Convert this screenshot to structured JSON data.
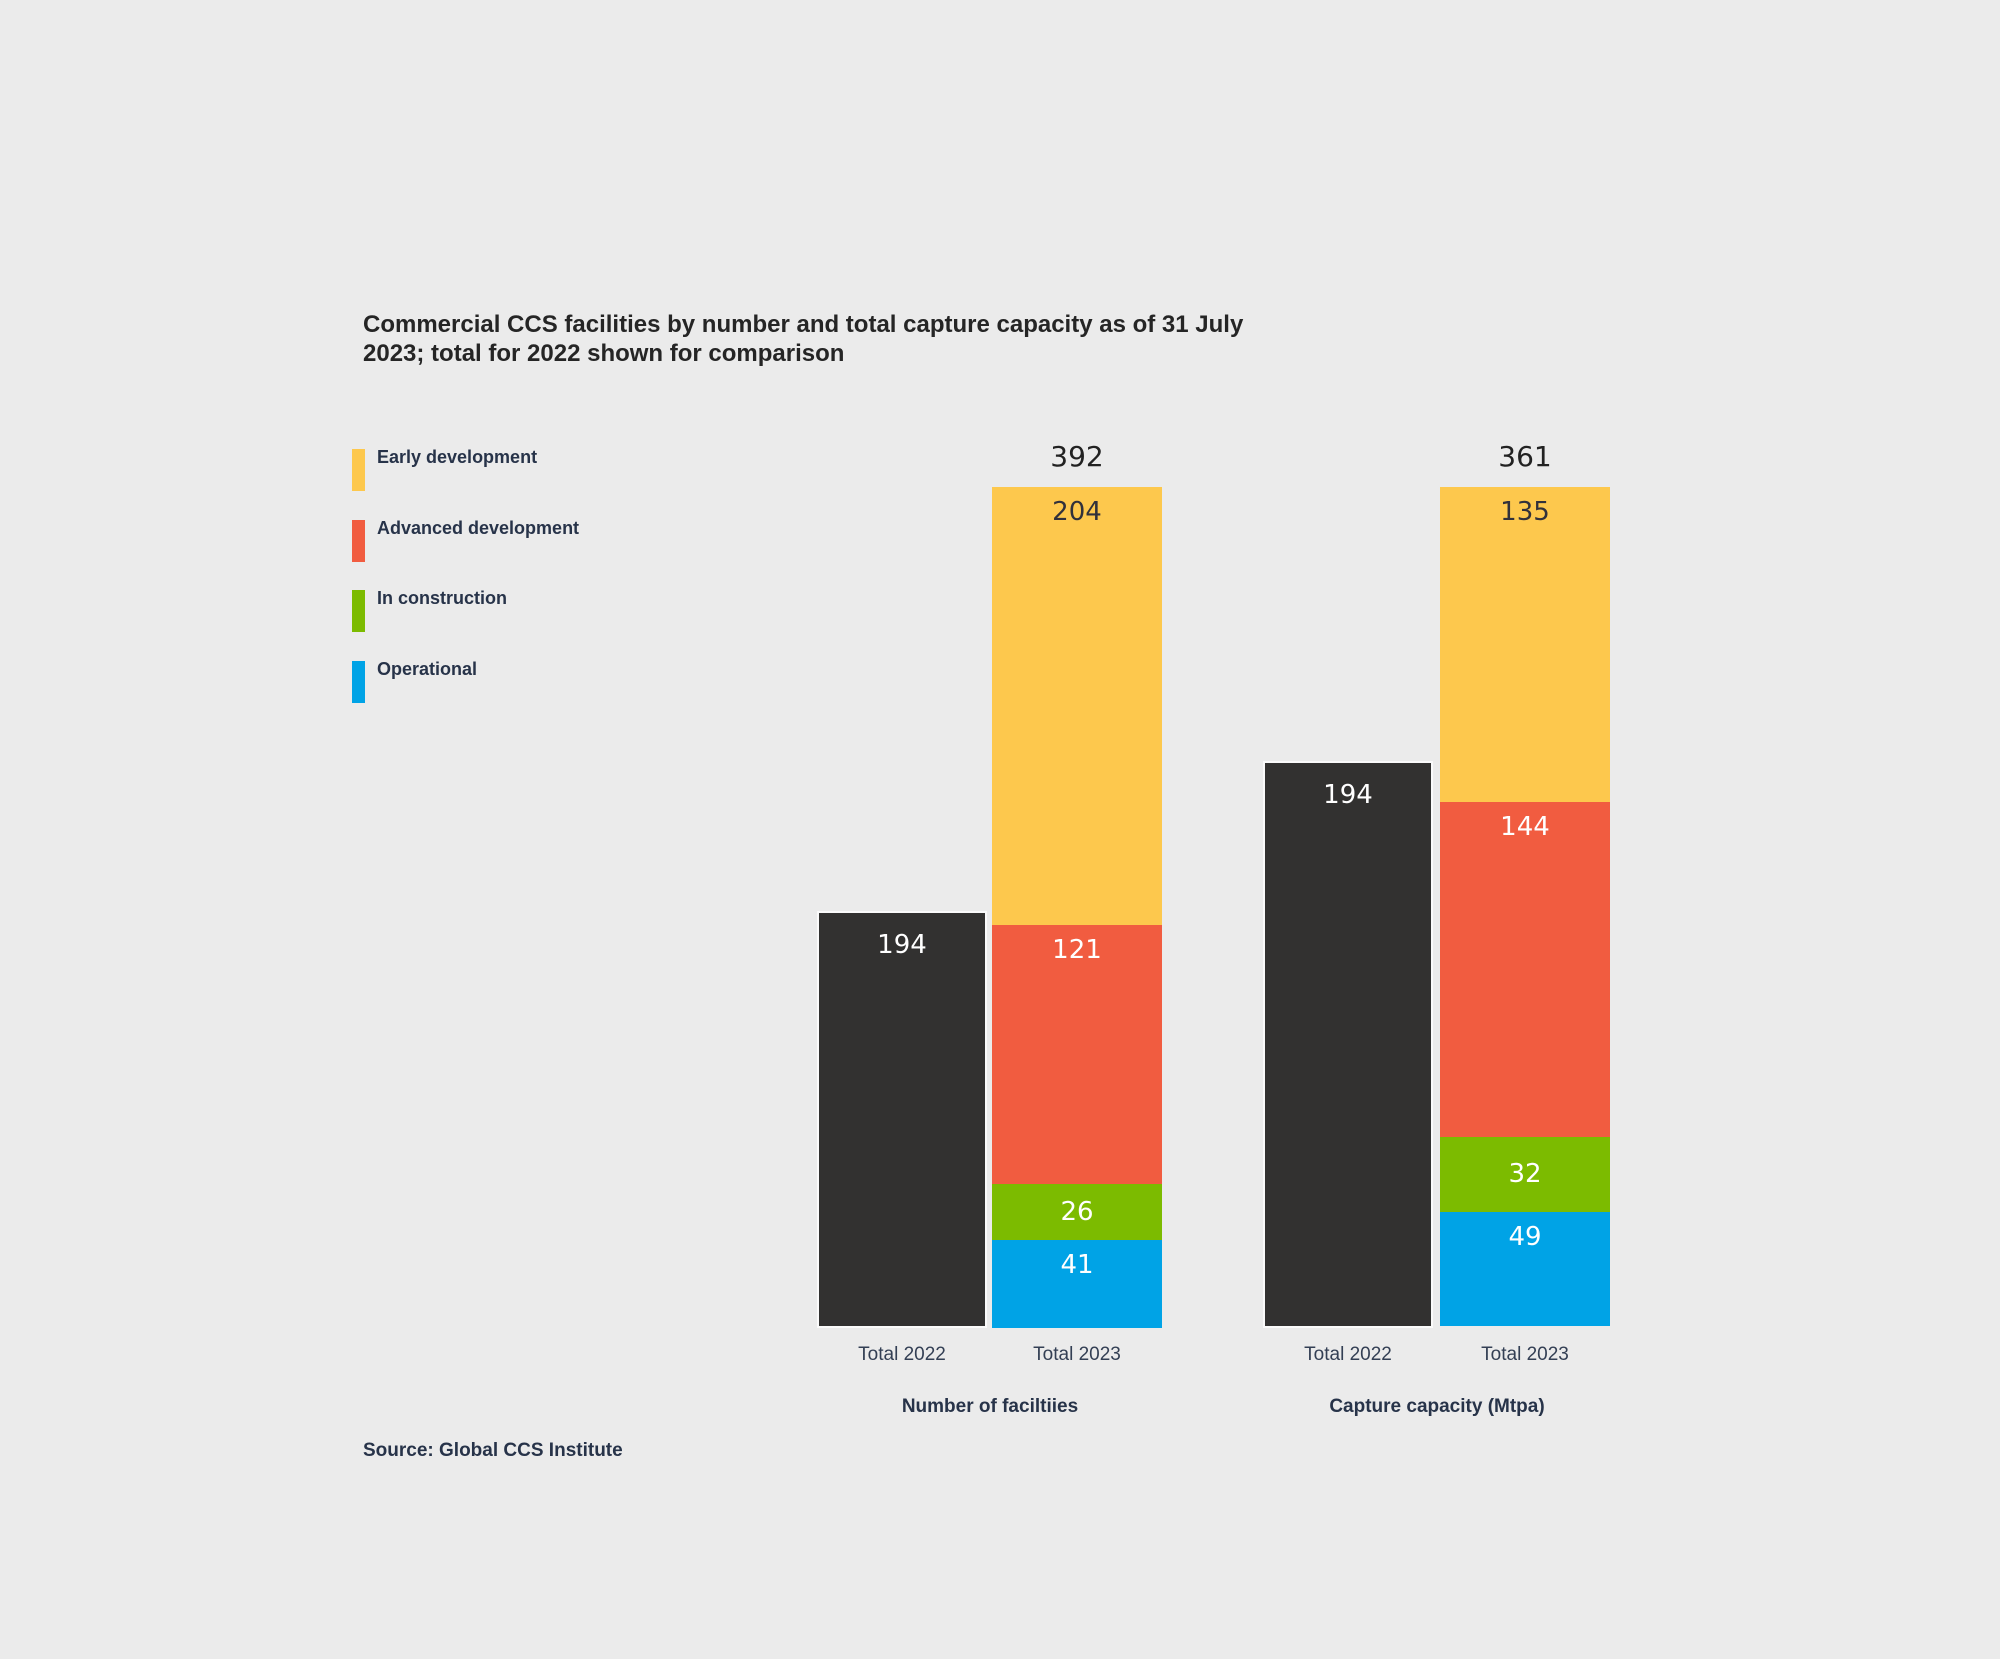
{
  "title_line1": "Commercial CCS facilities by number and total capture capacity as of 31 July",
  "title_line2": "2023; total for 2022 shown for comparison",
  "source": "Source: Global CCS Institute",
  "colors": {
    "background": "#EBEBEB",
    "early_development": "#FDC84D",
    "advanced_development": "#F15C40",
    "in_construction": "#7CBB00",
    "operational": "#00A3E6",
    "total_2022": "#323130",
    "title_text": "#252525",
    "text": "#273349",
    "label_on_light": "#31313B",
    "label_on_dark": "#FFFFFF"
  },
  "legend": [
    {
      "label": "Early development",
      "color_key": "early_development"
    },
    {
      "label": "Advanced development",
      "color_key": "advanced_development"
    },
    {
      "label": "In construction",
      "color_key": "in_construction"
    },
    {
      "label": "Operational",
      "color_key": "operational"
    }
  ],
  "chart_data": [
    {
      "type": "bar",
      "stacked": true,
      "group_label": "Number of faciltiies",
      "categories": [
        "Total 2022",
        "Total 2023"
      ],
      "gridlines": false,
      "value_axis_visible": false,
      "legend_position": "top-left",
      "comparison_bar": {
        "category": "Total 2022",
        "value": 194,
        "color_key": "total_2022"
      },
      "total_2023": 392,
      "series": [
        {
          "name": "Operational",
          "color_key": "operational",
          "value": 41
        },
        {
          "name": "In construction",
          "color_key": "in_construction",
          "value": 26
        },
        {
          "name": "Advanced development",
          "color_key": "advanced_development",
          "value": 121
        },
        {
          "name": "Early development",
          "color_key": "early_development",
          "value": 204
        }
      ]
    },
    {
      "type": "bar",
      "stacked": true,
      "group_label": "Capture capacity (Mtpa)",
      "categories": [
        "Total 2022",
        "Total 2023"
      ],
      "gridlines": false,
      "value_axis_visible": false,
      "legend_position": "top-left",
      "comparison_bar": {
        "category": "Total 2022",
        "value": 194,
        "color_key": "total_2022"
      },
      "total_2023": 361,
      "series": [
        {
          "name": "Operational",
          "color_key": "operational",
          "value": 49
        },
        {
          "name": "In construction",
          "color_key": "in_construction",
          "value": 32
        },
        {
          "name": "Advanced development",
          "color_key": "advanced_development",
          "value": 144
        },
        {
          "name": "Early development",
          "color_key": "early_development",
          "value": 135
        }
      ]
    }
  ]
}
